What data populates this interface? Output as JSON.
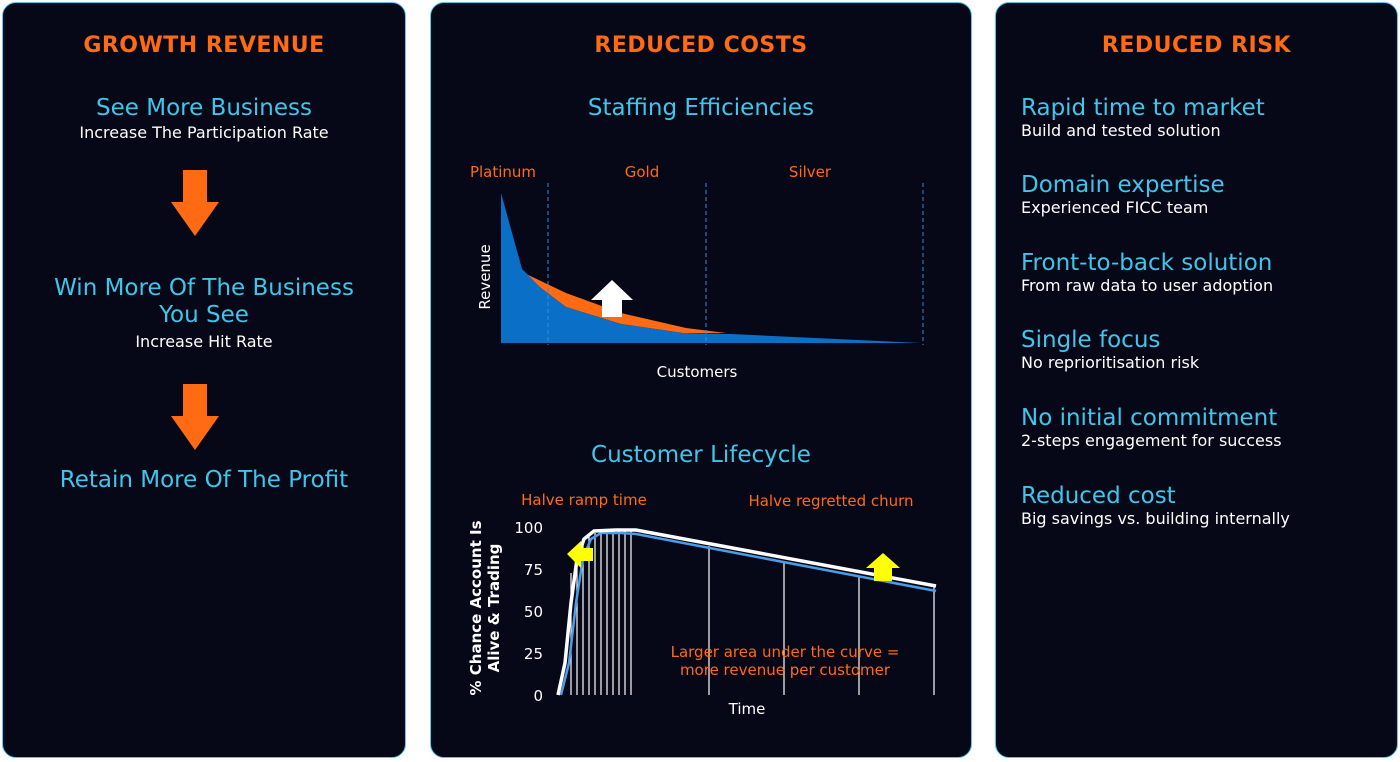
{
  "growth": {
    "title": "GROWTH REVENUE",
    "step1_title": "See More Business",
    "step1_sub": "Increase The Participation Rate",
    "step2_title_line1": "Win More Of The Business",
    "step2_title_line2": "You See",
    "step2_sub": "Increase Hit Rate",
    "step3_title": "Retain More Of The Profit"
  },
  "costs": {
    "title": "REDUCED COSTS",
    "staffing": {
      "heading": "Staffing Efficiencies",
      "tiers": [
        "Platinum",
        "Gold",
        "Silver"
      ],
      "ylabel": "Revenue",
      "xlabel": "Customers"
    },
    "lifecycle": {
      "heading": "Customer Lifecycle",
      "note_left": "Halve ramp time",
      "note_right": "Halve regretted churn",
      "ylabel_line1": "% Chance Account Is",
      "ylabel_line2": "Alive & Trading",
      "yticks": [
        "100",
        "75",
        "50",
        "25",
        "0"
      ],
      "xlabel": "Time",
      "area_note_line1": "Larger area under the curve =",
      "area_note_line2": "more revenue per customer"
    }
  },
  "risk": {
    "title": "REDUCED RISK",
    "items": [
      {
        "title": "Rapid time to market",
        "desc": "Build and tested solution"
      },
      {
        "title": "Domain expertise",
        "desc": "Experienced FICC team"
      },
      {
        "title": "Front-to-back solution",
        "desc": "From raw data to user adoption"
      },
      {
        "title": "Single focus",
        "desc": "No reprioritisation risk"
      },
      {
        "title": "No initial commitment",
        "desc": "2-steps engagement for success"
      },
      {
        "title": "Reduced cost",
        "desc": "Big savings vs. building internally"
      }
    ]
  },
  "colors": {
    "accent_orange": "#ff6a13",
    "accent_cyan": "#3fc6ea",
    "panel_bg": "#060818",
    "area_blue": "#0a6fc6",
    "arrow_yellow": "#ffff00"
  }
}
